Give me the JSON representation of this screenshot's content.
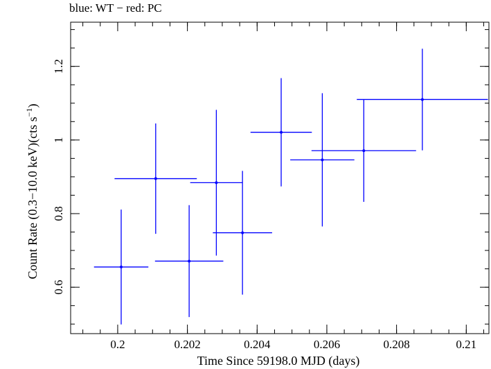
{
  "chart_data": {
    "type": "scatter",
    "title": "blue: WT − red: PC",
    "xlabel": "Time Since 59198.0 MJD (days)",
    "ylabel_main": "Count Rate (0.3−10.0 keV)(cts s",
    "ylabel_sup": "−1",
    "ylabel_close": ")",
    "xlim": [
      0.19865,
      0.21065
    ],
    "ylim": [
      0.474,
      1.32
    ],
    "xticks": [
      {
        "value": 0.2,
        "label": "0.2"
      },
      {
        "value": 0.202,
        "label": "0.202"
      },
      {
        "value": 0.204,
        "label": "0.204"
      },
      {
        "value": 0.206,
        "label": "0.206"
      },
      {
        "value": 0.208,
        "label": "0.208"
      },
      {
        "value": 0.21,
        "label": "0.21"
      }
    ],
    "yticks": [
      {
        "value": 0.6,
        "label": "0.6"
      },
      {
        "value": 0.8,
        "label": "0.8"
      },
      {
        "value": 1.0,
        "label": "1"
      },
      {
        "value": 1.2,
        "label": "1.2"
      }
    ],
    "x_minor_step": 0.0005,
    "y_minor_step": 0.05,
    "series": [
      {
        "color": "#0000ff",
        "points": [
          {
            "x": 0.2001,
            "xerr": 0.00078,
            "y": 0.655,
            "yerr": 0.156
          },
          {
            "x": 0.20109,
            "xerr": 0.00118,
            "y": 0.895,
            "yerr": 0.15
          },
          {
            "x": 0.20205,
            "xerr": 0.00098,
            "y": 0.671,
            "yerr": 0.152
          },
          {
            "x": 0.20283,
            "xerr": 0.00075,
            "y": 0.884,
            "yerr": 0.198
          },
          {
            "x": 0.20358,
            "xerr": 0.00085,
            "y": 0.748,
            "yerr": 0.168
          },
          {
            "x": 0.20469,
            "xerr": 0.00088,
            "y": 1.021,
            "yerr": 0.147
          },
          {
            "x": 0.20587,
            "xerr": 0.00092,
            "y": 0.946,
            "yerr": 0.181
          },
          {
            "x": 0.20706,
            "xerr": 0.0015,
            "y": 0.971,
            "yerr": 0.139
          },
          {
            "x": 0.20874,
            "xerr": 0.00188,
            "y": 1.11,
            "yerr": 0.138
          }
        ]
      }
    ]
  }
}
